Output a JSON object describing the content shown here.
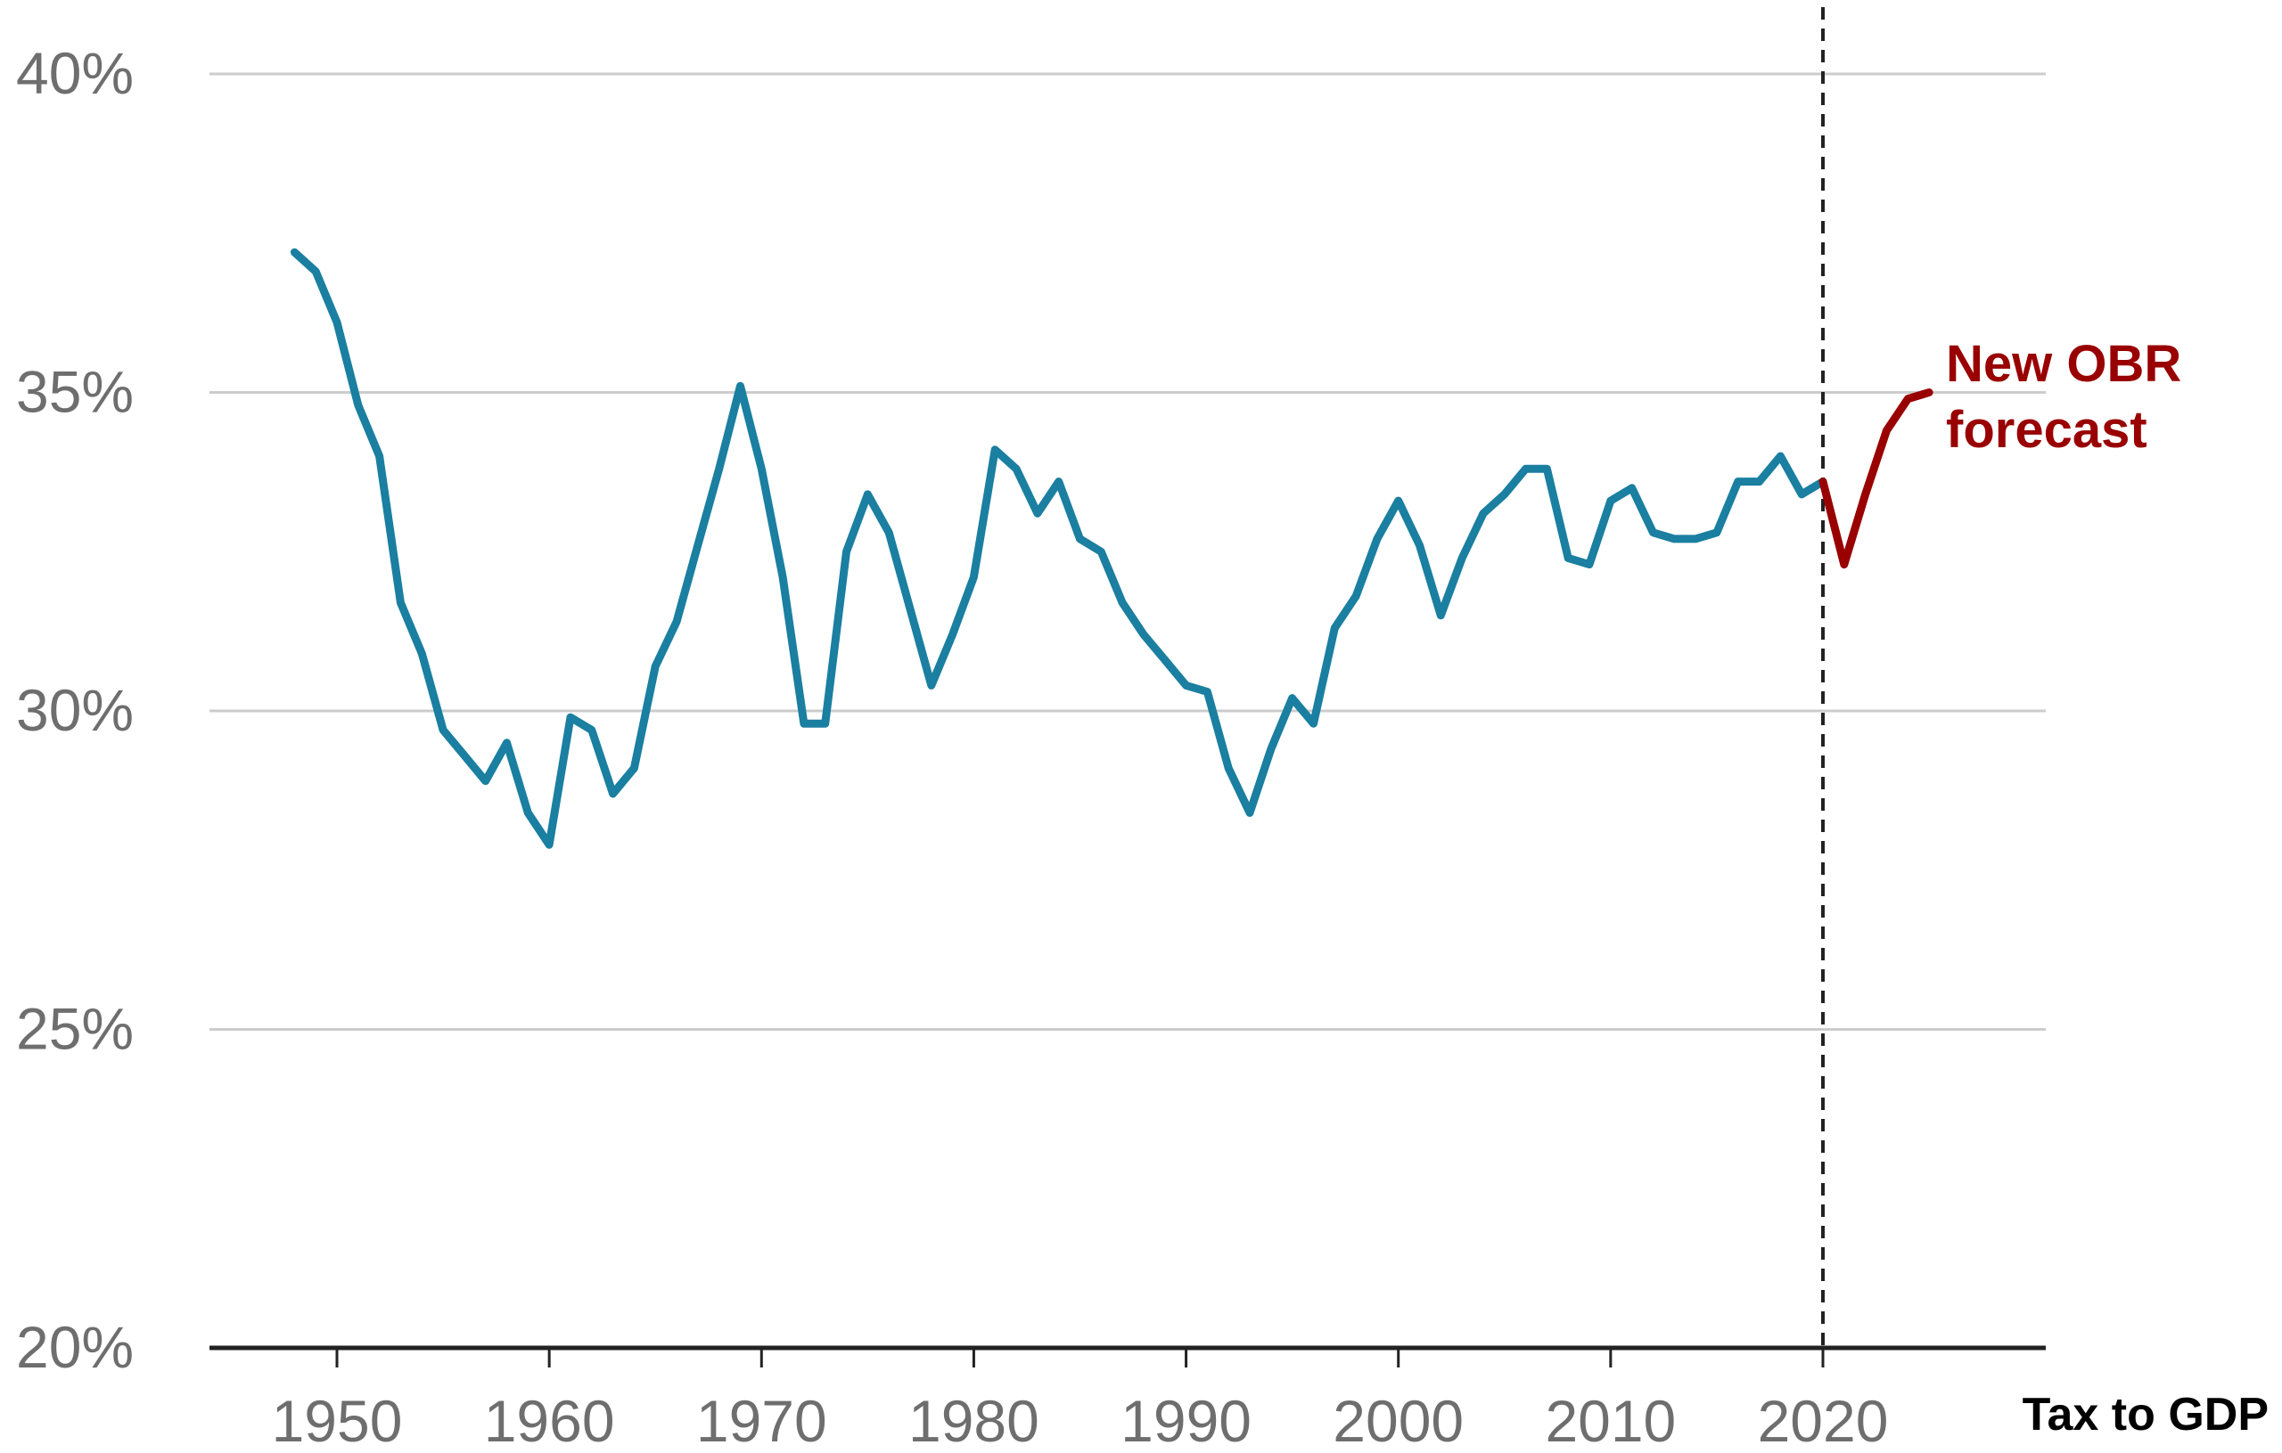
{
  "chart_data": {
    "type": "line",
    "title": "",
    "xlabel": "",
    "ylabel": "",
    "xlim": [
      1944,
      2030
    ],
    "ylim": [
      20,
      40
    ],
    "x_ticks": [
      1950,
      1960,
      1970,
      1980,
      1990,
      2000,
      2010,
      2020
    ],
    "x_tick_labels": [
      "1950",
      "1960",
      "1970",
      "1980",
      "1990",
      "2000",
      "2010",
      "2020"
    ],
    "y_ticks": [
      20,
      25,
      30,
      35,
      40
    ],
    "y_tick_labels": [
      "20%",
      "25%",
      "30%",
      "35%",
      "40%"
    ],
    "grid": "horizontal",
    "reference_line": {
      "x": 2020,
      "style": "dashed"
    },
    "series": [
      {
        "color": "#1a7fa0",
        "x": [
          1948,
          1949,
          1950,
          1951,
          1952,
          1953,
          1954,
          1955,
          1956,
          1957,
          1958,
          1959,
          1960,
          1961,
          1962,
          1963,
          1964,
          1965,
          1966,
          1967,
          1968,
          1969,
          1970,
          1971,
          1972,
          1973,
          1974,
          1975,
          1976,
          1977,
          1978,
          1979,
          1980,
          1981,
          1982,
          1983,
          1984,
          1985,
          1986,
          1987,
          1988,
          1989,
          1990,
          1991,
          1992,
          1993,
          1994,
          1995,
          1996,
          1997,
          1998,
          1999,
          2000,
          2001,
          2002,
          2003,
          2004,
          2005,
          2006,
          2007,
          2008,
          2009,
          2010,
          2011,
          2012,
          2013,
          2014,
          2015,
          2016,
          2017,
          2018,
          2019,
          2020
        ],
        "values": [
          37.2,
          36.9,
          36.1,
          34.8,
          34.0,
          31.7,
          30.9,
          29.7,
          29.3,
          28.9,
          29.5,
          28.4,
          27.9,
          29.9,
          29.7,
          28.7,
          29.1,
          30.7,
          31.4,
          32.6,
          33.8,
          35.1,
          33.8,
          32.1,
          29.8,
          29.8,
          32.5,
          33.4,
          32.8,
          31.6,
          30.4,
          31.2,
          32.1,
          34.1,
          33.8,
          33.1,
          33.6,
          32.7,
          32.5,
          31.7,
          31.2,
          30.8,
          30.4,
          30.3,
          29.1,
          28.4,
          29.4,
          30.2,
          29.8,
          31.3,
          31.8,
          32.7,
          33.3,
          32.6,
          31.5,
          32.4,
          33.1,
          33.4,
          33.8,
          33.8,
          32.4,
          32.3,
          33.3,
          33.5,
          32.8,
          32.7,
          32.7,
          32.8,
          33.6,
          33.6,
          34.0,
          33.4,
          33.6
        ]
      },
      {
        "color": "#990000",
        "x": [
          2020,
          2021,
          2022,
          2023,
          2024,
          2025
        ],
        "values": [
          33.6,
          32.3,
          33.4,
          34.4,
          34.9,
          35.0
        ]
      }
    ],
    "annotation": "New OBR\nforecast",
    "source": "Tax to GDP"
  }
}
